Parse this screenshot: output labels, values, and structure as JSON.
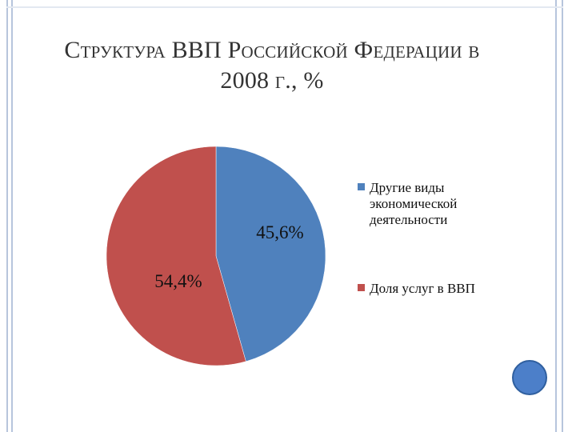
{
  "slide": {
    "title_line1": "Структура ВВП Российской Федерации в",
    "title_line2": "2008 г., %"
  },
  "chart_data": {
    "type": "pie",
    "title": "Структура ВВП Российской Федерации в 2008 г., %",
    "categories": [
      "Другие виды экономической деятельности",
      "Доля услуг в ВВП"
    ],
    "values": [
      45.6,
      54.4
    ],
    "data_labels": [
      "45,6%",
      "54,4%"
    ],
    "colors": [
      "#4f81bd",
      "#c0504d"
    ],
    "legend": {
      "placement": "right",
      "entries": [
        [
          "Другие виды",
          "экономической",
          "деятельности"
        ],
        [
          "Доля услуг в ВВП"
        ]
      ]
    },
    "start_angle_deg": 0,
    "direction": "clockwise"
  }
}
